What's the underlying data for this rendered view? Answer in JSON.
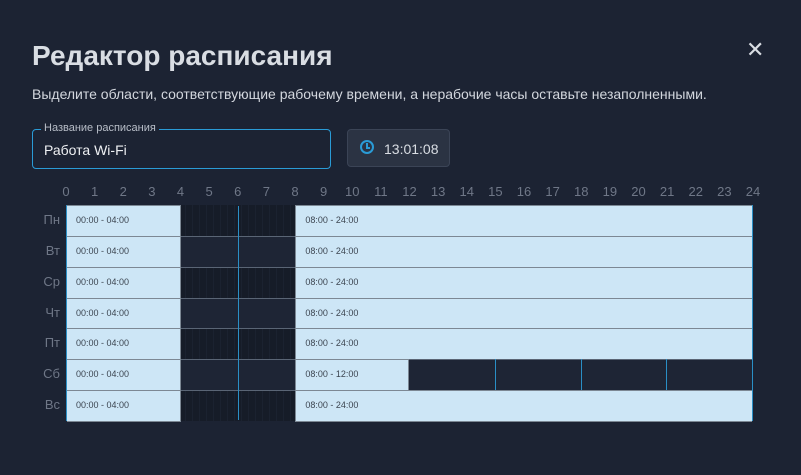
{
  "title": "Редактор расписания",
  "subtitle": "Выделите области, соответствующие рабочему времени, а нерабочие часы оставьте незаполненными.",
  "close_icon": "close-icon",
  "name_field": {
    "label": "Название расписания",
    "value": "Работа Wi-Fi"
  },
  "clock": {
    "icon": "clock-icon",
    "time": "13:01:08"
  },
  "accent": "#2a9bd6",
  "hours": [
    "0",
    "1",
    "2",
    "3",
    "4",
    "5",
    "6",
    "7",
    "8",
    "9",
    "10",
    "11",
    "12",
    "13",
    "14",
    "15",
    "16",
    "17",
    "18",
    "19",
    "20",
    "21",
    "22",
    "23",
    "24"
  ],
  "days": [
    {
      "label": "Пн",
      "blocks": [
        {
          "start": 0,
          "end": 4,
          "text": "00:00 - 04:00"
        },
        {
          "start": 8,
          "end": 24,
          "text": "08:00 - 24:00"
        }
      ]
    },
    {
      "label": "Вт",
      "blocks": [
        {
          "start": 0,
          "end": 4,
          "text": "00:00 - 04:00"
        },
        {
          "start": 8,
          "end": 24,
          "text": "08:00 - 24:00"
        }
      ]
    },
    {
      "label": "Ср",
      "blocks": [
        {
          "start": 0,
          "end": 4,
          "text": "00:00 - 04:00"
        },
        {
          "start": 8,
          "end": 24,
          "text": "08:00 - 24:00"
        }
      ]
    },
    {
      "label": "Чт",
      "blocks": [
        {
          "start": 0,
          "end": 4,
          "text": "00:00 - 04:00"
        },
        {
          "start": 8,
          "end": 24,
          "text": "08:00 - 24:00"
        }
      ]
    },
    {
      "label": "Пт",
      "blocks": [
        {
          "start": 0,
          "end": 4,
          "text": "00:00 - 04:00"
        },
        {
          "start": 8,
          "end": 24,
          "text": "08:00 - 24:00"
        }
      ]
    },
    {
      "label": "Сб",
      "blocks": [
        {
          "start": 0,
          "end": 4,
          "text": "00:00 - 04:00"
        },
        {
          "start": 8,
          "end": 12,
          "text": "08:00 - 12:00"
        }
      ]
    },
    {
      "label": "Вс",
      "blocks": [
        {
          "start": 0,
          "end": 4,
          "text": "00:00 - 04:00"
        },
        {
          "start": 8,
          "end": 24,
          "text": "08:00 - 24:00"
        }
      ]
    }
  ]
}
